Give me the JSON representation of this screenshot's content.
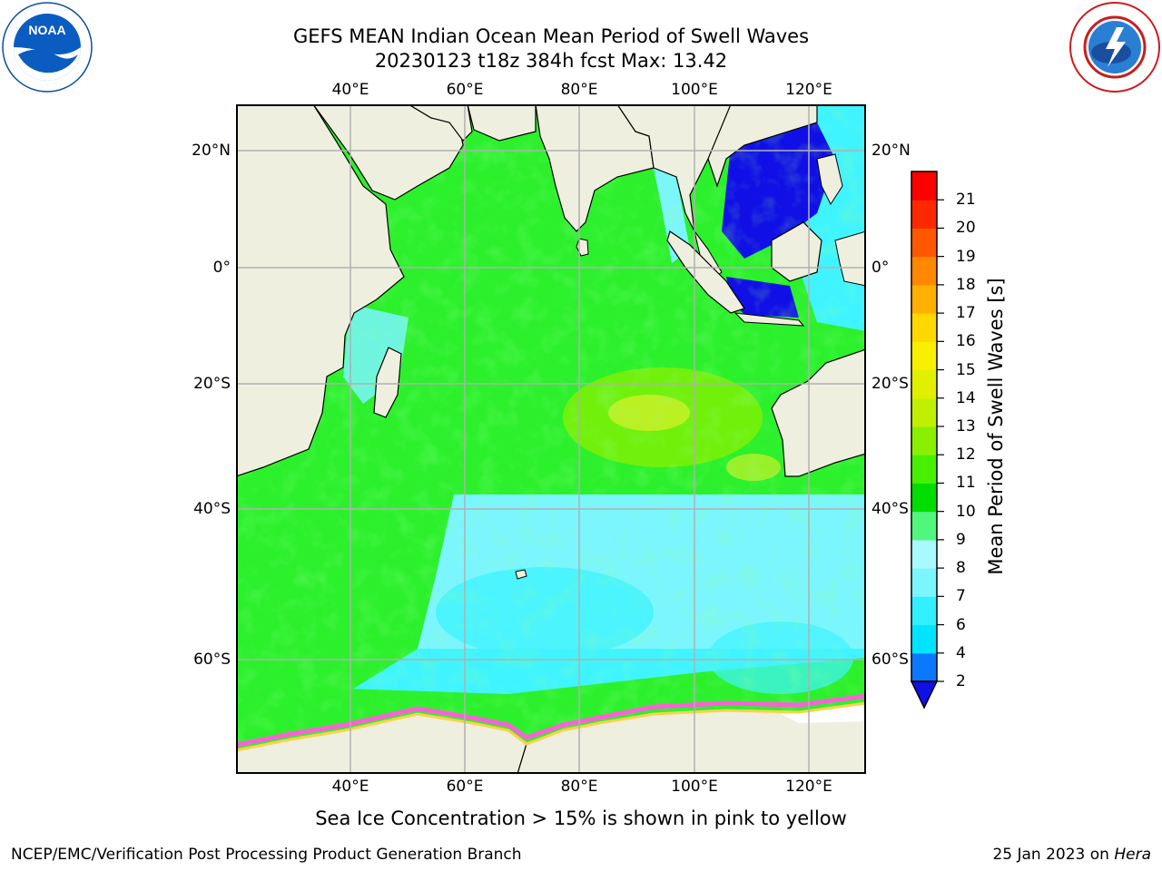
{
  "title_line1": "GEFS MEAN Indian Ocean Mean Period of Swell Waves",
  "title_line2": "20230123 t18z 384h fcst   Max: 13.42",
  "lon_ticks": [
    "40°E",
    "60°E",
    "80°E",
    "100°E",
    "120°E"
  ],
  "lat_ticks": [
    "20°N",
    "0°",
    "20°S",
    "40°S",
    "60°S"
  ],
  "colorbar": {
    "title": "Mean Period of Swell Waves [s]",
    "tick_labels": [
      "2",
      "4",
      "6",
      "7",
      "8",
      "9",
      "10",
      "11",
      "12",
      "13",
      "14",
      "15",
      "16",
      "17",
      "18",
      "19",
      "20",
      "21"
    ],
    "colors": [
      "#0a78ff",
      "#00e4ff",
      "#32f0ff",
      "#7bf6ff",
      "#a8faff",
      "#50f77c",
      "#00dd00",
      "#48f000",
      "#88f000",
      "#c0f000",
      "#e0f000",
      "#f8f000",
      "#ffd800",
      "#ffb000",
      "#ff8800",
      "#ff5800",
      "#ff2800",
      "#ff0000"
    ],
    "under_color": "#1010e6"
  },
  "map_colors": {
    "land": "#efefdf",
    "ocean_main": "#2cf02c",
    "ocean_south": "#7bf6ff",
    "ocean_far_south": "#40f4ff",
    "bay_dark": "#1010e6",
    "high_period": "#c8f028",
    "sea_ice": "#ff60d8",
    "grid": "#b0b0b0"
  },
  "note": "Sea Ice Concentration > 15% is shown in pink to yellow",
  "footer_left": "NCEP/EMC/Verification Post Processing Product Generation Branch",
  "footer_date": "25 Jan 2023 on",
  "footer_machine": "Hera",
  "logos": [
    "noaa-logo",
    "nws-logo"
  ]
}
